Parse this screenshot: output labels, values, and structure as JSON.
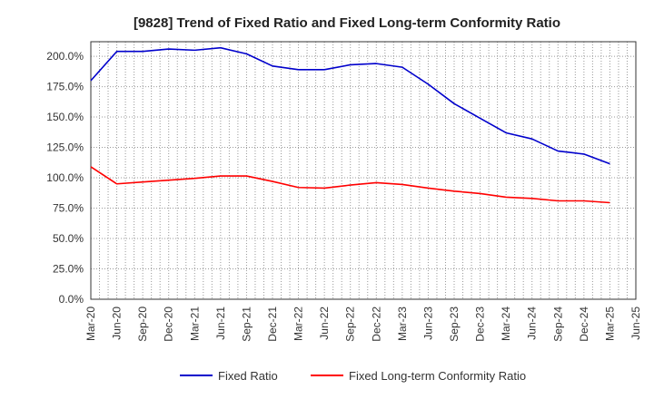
{
  "chart_data": {
    "type": "line",
    "title": "[9828]  Trend of Fixed Ratio and Fixed Long-term Conformity Ratio",
    "xlabel": "",
    "ylabel": "",
    "x_ticks": [
      "Mar-20",
      "Jun-20",
      "Sep-20",
      "Dec-20",
      "Mar-21",
      "Jun-21",
      "Sep-21",
      "Dec-21",
      "Mar-22",
      "Jun-22",
      "Sep-22",
      "Dec-22",
      "Mar-23",
      "Jun-23",
      "Sep-23",
      "Dec-23",
      "Mar-24",
      "Jun-24",
      "Sep-24",
      "Dec-24",
      "Mar-25",
      "Jun-25"
    ],
    "y_ticks": [
      "0.0%",
      "25.0%",
      "50.0%",
      "75.0%",
      "100.0%",
      "125.0%",
      "150.0%",
      "175.0%",
      "200.0%"
    ],
    "ylim": [
      0,
      212
    ],
    "grid": true,
    "legend_position": "bottom",
    "series": [
      {
        "name": "Fixed Ratio",
        "color": "#0000cc",
        "x": [
          "Mar-20",
          "Jun-20",
          "Sep-20",
          "Dec-20",
          "Mar-21",
          "Jun-21",
          "Sep-21",
          "Dec-21",
          "Mar-22",
          "Jun-22",
          "Sep-22",
          "Dec-22",
          "Mar-23",
          "Jun-23",
          "Sep-23",
          "Dec-23",
          "Mar-24",
          "Jun-24",
          "Sep-24",
          "Dec-24",
          "Mar-25"
        ],
        "values": [
          180.0,
          204.0,
          204.0,
          206.0,
          205.0,
          207.0,
          202.0,
          192.0,
          189.0,
          189.0,
          193.0,
          194.0,
          191.0,
          177.0,
          161.0,
          149.0,
          137.0,
          132.0,
          122.0,
          119.5,
          111.5
        ]
      },
      {
        "name": "Fixed Long-term Conformity Ratio",
        "color": "#ff0000",
        "x": [
          "Mar-20",
          "Jun-20",
          "Sep-20",
          "Dec-20",
          "Mar-21",
          "Jun-21",
          "Sep-21",
          "Dec-21",
          "Mar-22",
          "Jun-22",
          "Sep-22",
          "Dec-22",
          "Mar-23",
          "Jun-23",
          "Sep-23",
          "Dec-23",
          "Mar-24",
          "Jun-24",
          "Sep-24",
          "Dec-24",
          "Mar-25"
        ],
        "values": [
          109.0,
          95.0,
          96.5,
          98.0,
          99.5,
          101.5,
          101.5,
          97.0,
          92.0,
          91.5,
          94.0,
          96.0,
          94.5,
          91.5,
          89.0,
          87.0,
          84.0,
          83.0,
          81.0,
          81.0,
          79.5
        ]
      }
    ]
  }
}
